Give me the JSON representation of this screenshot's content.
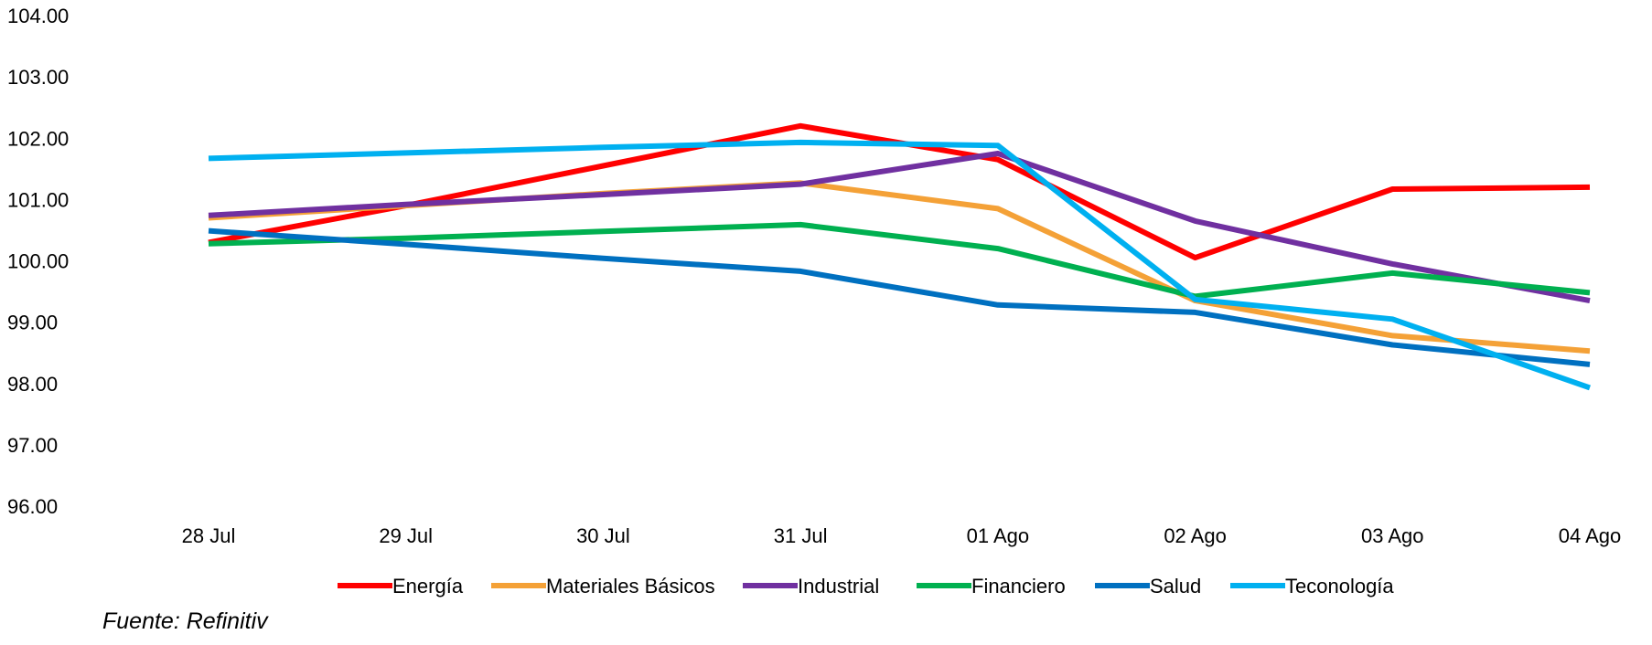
{
  "chart_data": {
    "type": "line",
    "title": "",
    "xlabel": "",
    "ylabel": "",
    "categories": [
      "28 Jul",
      "29 Jul",
      "30 Jul",
      "31 Jul",
      "01 Ago",
      "02 Ago",
      "03 Ago",
      "04 Ago"
    ],
    "ylim": [
      96,
      104
    ],
    "yticks": [
      "96.00",
      "97.00",
      "98.00",
      "99.00",
      "100.00",
      "101.00",
      "102.00",
      "103.00",
      "104.00"
    ],
    "grid": false,
    "legend_position": "bottom",
    "series": [
      {
        "name": "Energía",
        "color": "#ff0000",
        "values": [
          100.3,
          100.9,
          101.55,
          102.2,
          101.65,
          100.05,
          101.17,
          101.2
        ]
      },
      {
        "name": "Materiales Básicos",
        "color": "#f4a137",
        "values": [
          100.7,
          100.9,
          101.1,
          101.27,
          100.85,
          99.35,
          98.78,
          98.53
        ]
      },
      {
        "name": "Industrial",
        "color": "#7030a0",
        "values": [
          100.74,
          100.92,
          101.08,
          101.25,
          101.75,
          100.65,
          99.95,
          99.35
        ]
      },
      {
        "name": "Financiero",
        "color": "#00b050",
        "values": [
          100.28,
          100.37,
          100.48,
          100.59,
          100.2,
          99.42,
          99.8,
          99.48
        ]
      },
      {
        "name": "Salud",
        "color": "#0070c0",
        "values": [
          100.49,
          100.27,
          100.04,
          99.83,
          99.28,
          99.16,
          98.63,
          98.31
        ]
      },
      {
        "name": "Teconología",
        "color": "#00b0f0",
        "values": [
          101.67,
          101.76,
          101.85,
          101.93,
          101.88,
          99.37,
          99.05,
          97.93
        ]
      }
    ]
  },
  "footer": {
    "source": "Fuente: Refinitiv"
  }
}
